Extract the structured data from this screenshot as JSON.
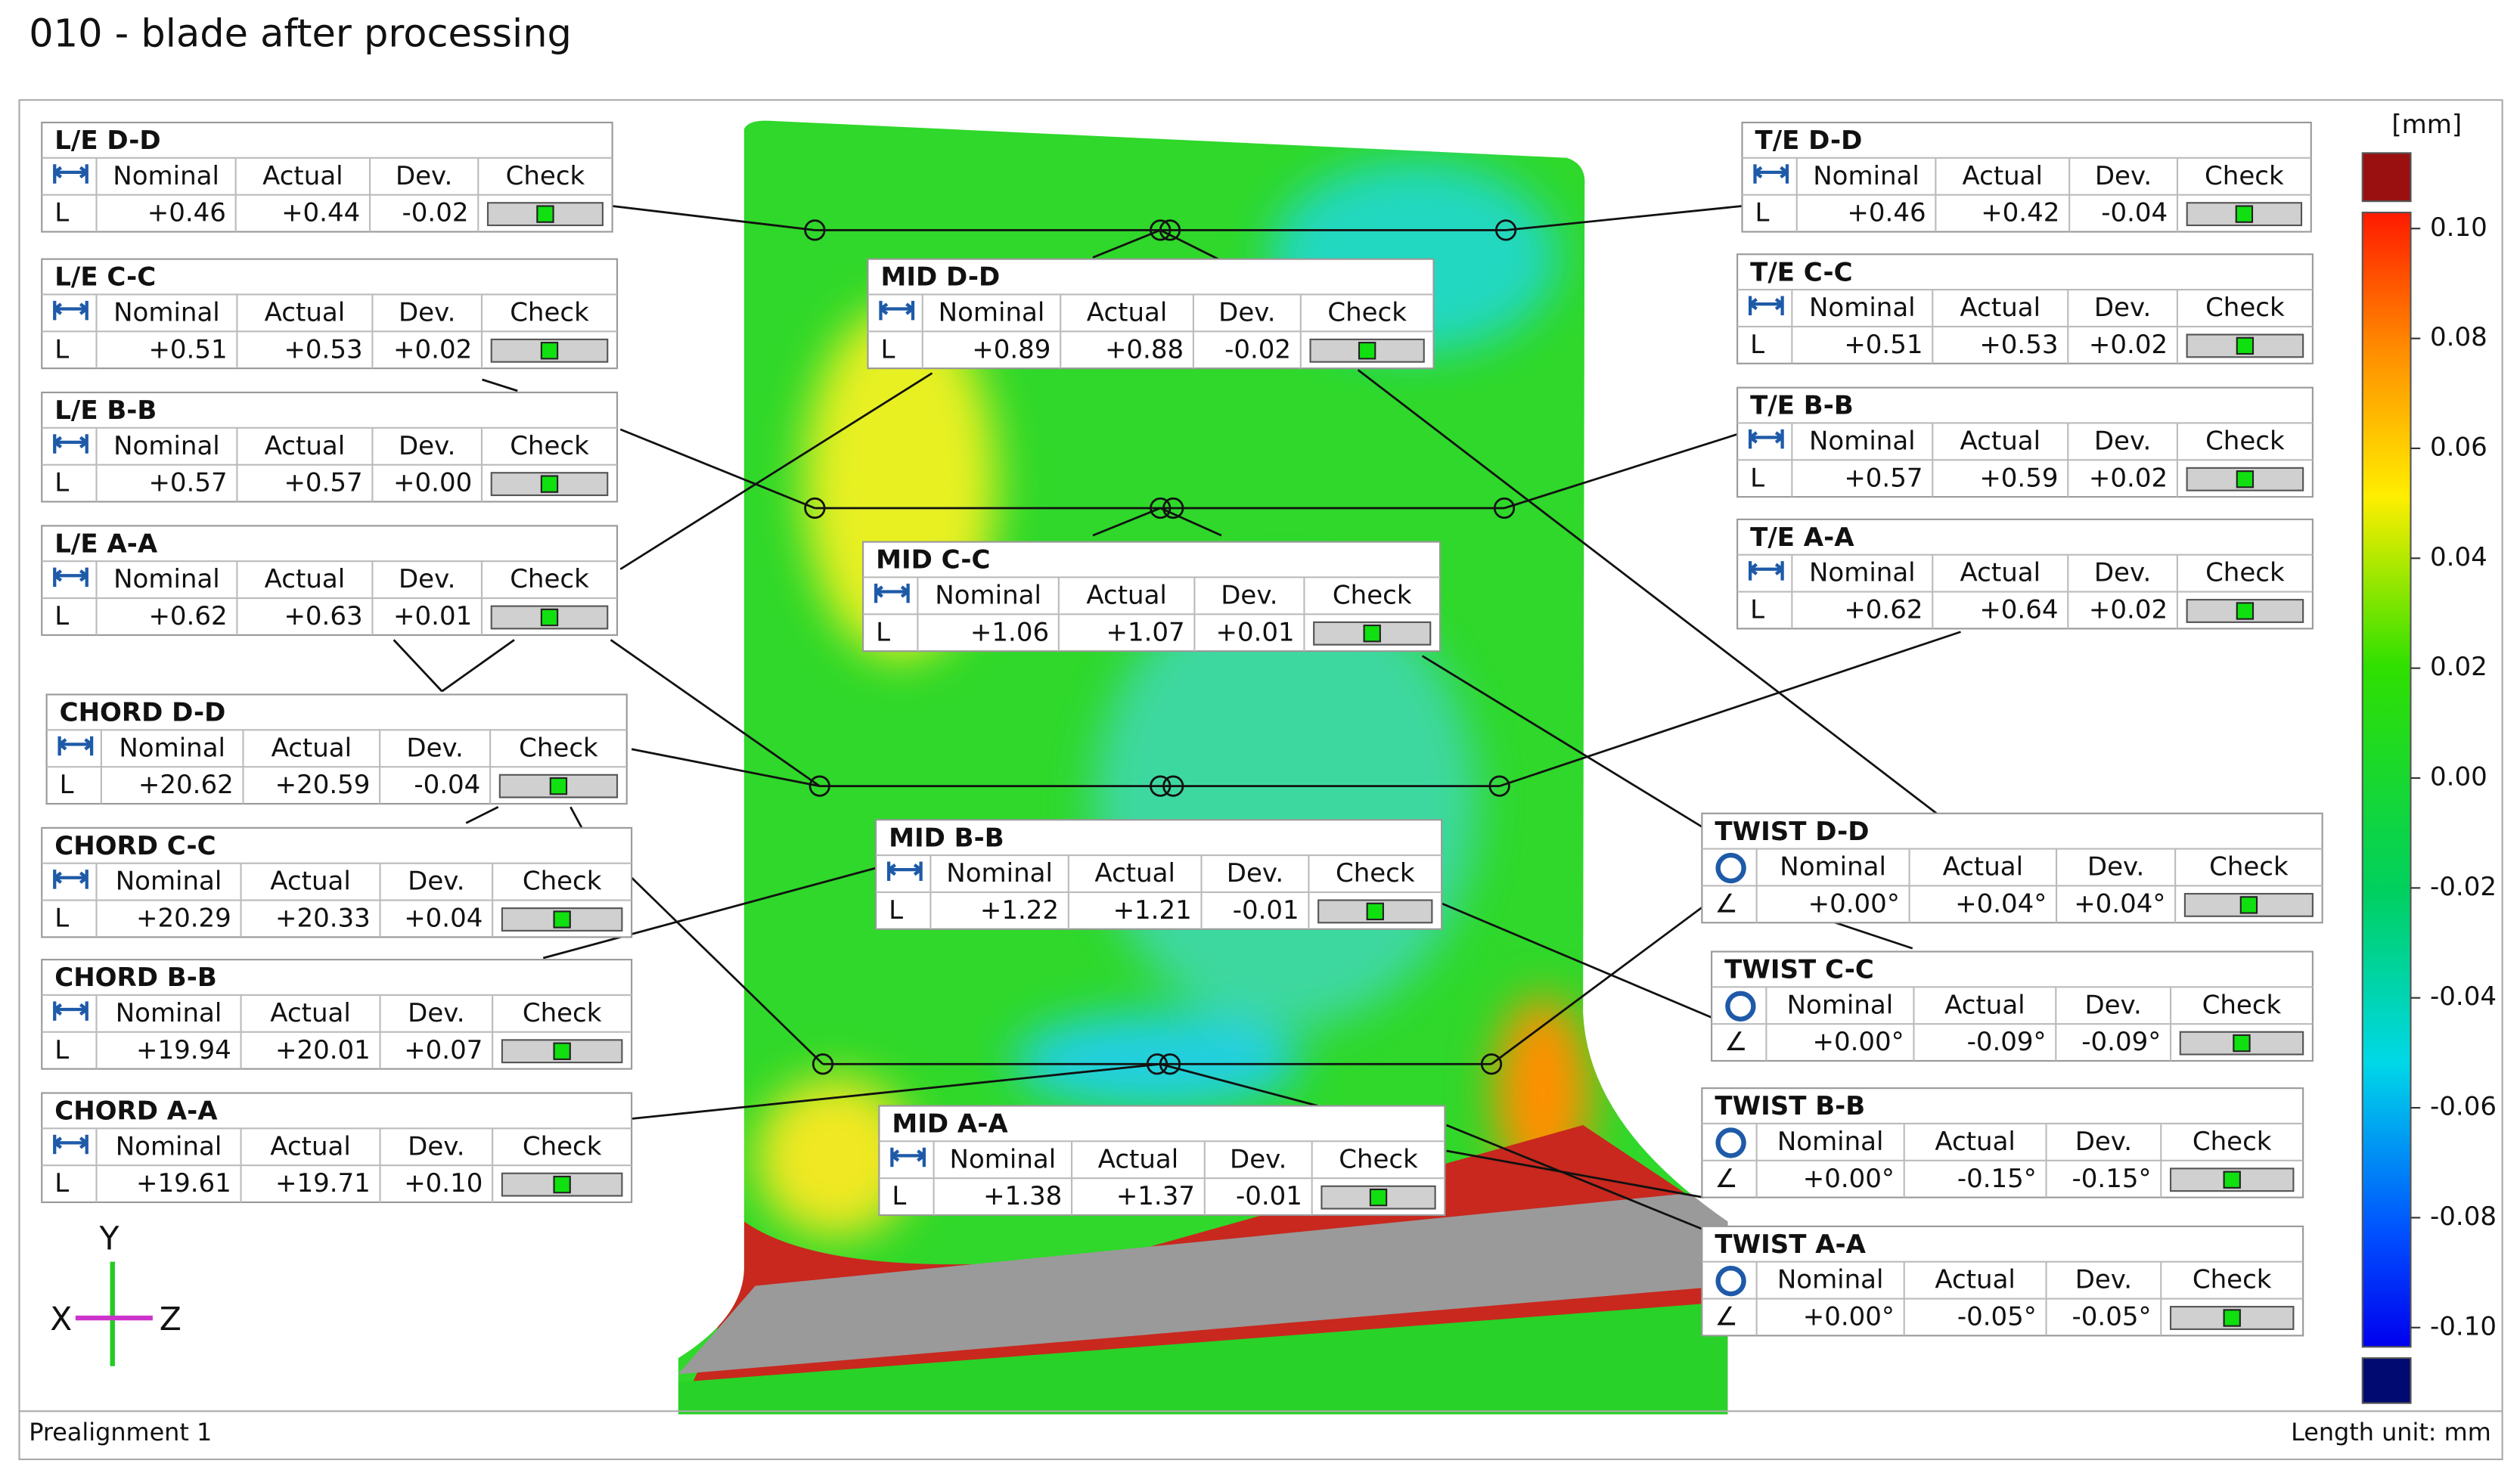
{
  "title": "010 - blade after processing",
  "columns": [
    "Nominal",
    "Actual",
    "Dev.",
    "Check"
  ],
  "labels": [
    {
      "name": "L/E D-D",
      "row": "L",
      "nominal": "+0.46",
      "actual": "+0.44",
      "dev": "-0.02"
    },
    {
      "name": "L/E C-C",
      "row": "L",
      "nominal": "+0.51",
      "actual": "+0.53",
      "dev": "+0.02"
    },
    {
      "name": "L/E B-B",
      "row": "L",
      "nominal": "+0.57",
      "actual": "+0.57",
      "dev": "+0.00"
    },
    {
      "name": "L/E A-A",
      "row": "L",
      "nominal": "+0.62",
      "actual": "+0.63",
      "dev": "+0.01"
    },
    {
      "name": "CHORD D-D",
      "row": "L",
      "nominal": "+20.62",
      "actual": "+20.59",
      "dev": "-0.04"
    },
    {
      "name": "CHORD C-C",
      "row": "L",
      "nominal": "+20.29",
      "actual": "+20.33",
      "dev": "+0.04"
    },
    {
      "name": "CHORD B-B",
      "row": "L",
      "nominal": "+19.94",
      "actual": "+20.01",
      "dev": "+0.07"
    },
    {
      "name": "CHORD A-A",
      "row": "L",
      "nominal": "+19.61",
      "actual": "+19.71",
      "dev": "+0.10"
    },
    {
      "name": "MID D-D",
      "row": "L",
      "nominal": "+0.89",
      "actual": "+0.88",
      "dev": "-0.02"
    },
    {
      "name": "MID C-C",
      "row": "L",
      "nominal": "+1.06",
      "actual": "+1.07",
      "dev": "+0.01"
    },
    {
      "name": "MID B-B",
      "row": "L",
      "nominal": "+1.22",
      "actual": "+1.21",
      "dev": "-0.01"
    },
    {
      "name": "MID A-A",
      "row": "L",
      "nominal": "+1.38",
      "actual": "+1.37",
      "dev": "-0.01"
    },
    {
      "name": "T/E D-D",
      "row": "L",
      "nominal": "+0.46",
      "actual": "+0.42",
      "dev": "-0.04"
    },
    {
      "name": "T/E C-C",
      "row": "L",
      "nominal": "+0.51",
      "actual": "+0.53",
      "dev": "+0.02"
    },
    {
      "name": "T/E B-B",
      "row": "L",
      "nominal": "+0.57",
      "actual": "+0.59",
      "dev": "+0.02"
    },
    {
      "name": "T/E A-A",
      "row": "L",
      "nominal": "+0.62",
      "actual": "+0.64",
      "dev": "+0.02"
    },
    {
      "name": "TWIST D-D",
      "row": "∠",
      "nominal": "+0.00°",
      "actual": "+0.04°",
      "dev": "+0.04°"
    },
    {
      "name": "TWIST C-C",
      "row": "∠",
      "nominal": "+0.00°",
      "actual": "-0.09°",
      "dev": "-0.09°"
    },
    {
      "name": "TWIST B-B",
      "row": "∠",
      "nominal": "+0.00°",
      "actual": "-0.15°",
      "dev": "-0.15°"
    },
    {
      "name": "TWIST A-A",
      "row": "∠",
      "nominal": "+0.00°",
      "actual": "-0.05°",
      "dev": "-0.05°"
    }
  ],
  "color_scale": {
    "unit": "[mm]",
    "ticks": [
      {
        "value": 0.1,
        "label": "0.10"
      },
      0.08,
      0.06,
      0.04,
      0.02,
      {
        "value": 0,
        "label": "0.00"
      },
      -0.02,
      -0.04,
      -0.06,
      -0.08,
      {
        "value": -0.1,
        "label": "-0.10"
      }
    ]
  },
  "axes": {
    "y": "Y",
    "x": "X",
    "z": "Z"
  },
  "footer": {
    "left": "Prealignment 1",
    "right": "Length unit: mm"
  }
}
